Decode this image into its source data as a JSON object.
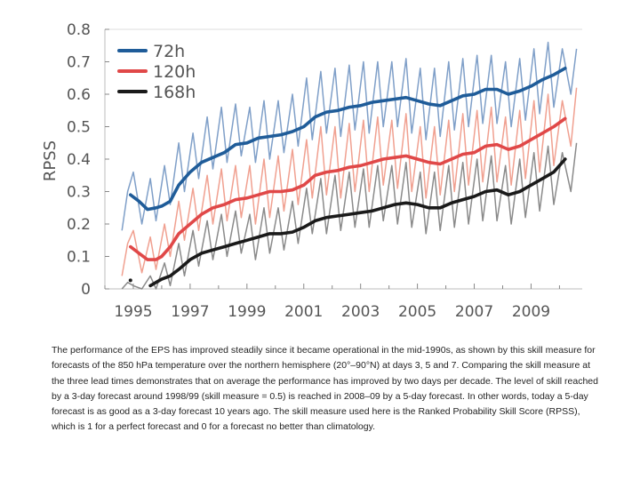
{
  "chart_data": {
    "type": "line",
    "ylabel": "RPSS",
    "xlabel": "",
    "ylim": [
      0,
      0.8
    ],
    "xlim": [
      1994,
      2010.8
    ],
    "yticks": [
      "0",
      "0.1",
      "0.2",
      "0.3",
      "0.4",
      "0.5",
      "0.6",
      "0.7",
      "0.8"
    ],
    "xticks": [
      "1995",
      "1997",
      "1999",
      "2001",
      "2003",
      "2005",
      "2007",
      "2009"
    ],
    "series": [
      {
        "name": "72h",
        "color": "#1f5c99",
        "raw_color": "#7f9fc8",
        "smooth_x": [
          1994.9,
          1995.2,
          1995.5,
          1995.8,
          1996.0,
          1996.3,
          1996.6,
          1997.0,
          1997.4,
          1997.8,
          1998.2,
          1998.6,
          1999.0,
          1999.4,
          1999.8,
          2000.2,
          2000.6,
          2001.0,
          2001.4,
          2001.8,
          2002.2,
          2002.6,
          2003.0,
          2003.4,
          2003.8,
          2004.2,
          2004.6,
          2005.0,
          2005.4,
          2005.8,
          2006.2,
          2006.6,
          2007.0,
          2007.4,
          2007.8,
          2008.2,
          2008.6,
          2009.0,
          2009.4,
          2009.8,
          2010.2
        ],
        "smooth_y": [
          0.29,
          0.27,
          0.245,
          0.25,
          0.255,
          0.27,
          0.32,
          0.36,
          0.39,
          0.405,
          0.42,
          0.445,
          0.45,
          0.465,
          0.47,
          0.475,
          0.485,
          0.5,
          0.53,
          0.545,
          0.55,
          0.56,
          0.565,
          0.575,
          0.58,
          0.585,
          0.59,
          0.58,
          0.57,
          0.565,
          0.58,
          0.595,
          0.6,
          0.615,
          0.615,
          0.6,
          0.61,
          0.625,
          0.645,
          0.66,
          0.68
        ],
        "raw_x": [
          1994.6,
          1994.8,
          1995.0,
          1995.3,
          1995.6,
          1995.8,
          1996.1,
          1996.3,
          1996.6,
          1996.8,
          1997.1,
          1997.3,
          1997.6,
          1997.8,
          1998.1,
          1998.3,
          1998.6,
          1998.8,
          1999.1,
          1999.3,
          1999.6,
          1999.8,
          2000.1,
          2000.3,
          2000.6,
          2000.8,
          2001.1,
          2001.3,
          2001.6,
          2001.8,
          2002.1,
          2002.3,
          2002.6,
          2002.8,
          2003.1,
          2003.3,
          2003.6,
          2003.8,
          2004.1,
          2004.3,
          2004.6,
          2004.8,
          2005.1,
          2005.3,
          2005.6,
          2005.8,
          2006.1,
          2006.3,
          2006.6,
          2006.8,
          2007.1,
          2007.3,
          2007.6,
          2007.8,
          2008.1,
          2008.3,
          2008.6,
          2008.8,
          2009.1,
          2009.3,
          2009.6,
          2009.8,
          2010.1,
          2010.4,
          2010.6
        ],
        "raw_y": [
          0.18,
          0.3,
          0.36,
          0.2,
          0.34,
          0.21,
          0.38,
          0.26,
          0.45,
          0.3,
          0.48,
          0.34,
          0.53,
          0.37,
          0.56,
          0.39,
          0.57,
          0.41,
          0.56,
          0.39,
          0.58,
          0.4,
          0.58,
          0.42,
          0.6,
          0.44,
          0.65,
          0.46,
          0.67,
          0.48,
          0.68,
          0.47,
          0.69,
          0.49,
          0.7,
          0.48,
          0.7,
          0.5,
          0.7,
          0.5,
          0.71,
          0.48,
          0.68,
          0.46,
          0.68,
          0.47,
          0.7,
          0.49,
          0.71,
          0.5,
          0.72,
          0.51,
          0.72,
          0.51,
          0.7,
          0.5,
          0.71,
          0.52,
          0.74,
          0.54,
          0.76,
          0.56,
          0.74,
          0.6,
          0.74
        ]
      },
      {
        "name": "120h",
        "color": "#e04848",
        "raw_color": "#f0a090",
        "smooth_x": [
          1994.9,
          1995.2,
          1995.5,
          1995.8,
          1996.0,
          1996.3,
          1996.6,
          1997.0,
          1997.4,
          1997.8,
          1998.2,
          1998.6,
          1999.0,
          1999.4,
          1999.8,
          2000.2,
          2000.6,
          2001.0,
          2001.4,
          2001.8,
          2002.2,
          2002.6,
          2003.0,
          2003.4,
          2003.8,
          2004.2,
          2004.6,
          2005.0,
          2005.4,
          2005.8,
          2006.2,
          2006.6,
          2007.0,
          2007.4,
          2007.8,
          2008.2,
          2008.6,
          2009.0,
          2009.4,
          2009.8,
          2010.2
        ],
        "smooth_y": [
          0.13,
          0.11,
          0.09,
          0.09,
          0.1,
          0.13,
          0.17,
          0.2,
          0.23,
          0.25,
          0.26,
          0.275,
          0.28,
          0.29,
          0.3,
          0.3,
          0.305,
          0.32,
          0.35,
          0.36,
          0.365,
          0.375,
          0.38,
          0.39,
          0.4,
          0.405,
          0.41,
          0.4,
          0.39,
          0.385,
          0.4,
          0.415,
          0.42,
          0.44,
          0.445,
          0.43,
          0.44,
          0.46,
          0.48,
          0.5,
          0.525
        ],
        "raw_x": [
          1994.6,
          1994.8,
          1995.0,
          1995.3,
          1995.6,
          1995.8,
          1996.1,
          1996.3,
          1996.6,
          1996.8,
          1997.1,
          1997.3,
          1997.6,
          1997.8,
          1998.1,
          1998.3,
          1998.6,
          1998.8,
          1999.1,
          1999.3,
          1999.6,
          1999.8,
          2000.1,
          2000.3,
          2000.6,
          2000.8,
          2001.1,
          2001.3,
          2001.6,
          2001.8,
          2002.1,
          2002.3,
          2002.6,
          2002.8,
          2003.1,
          2003.3,
          2003.6,
          2003.8,
          2004.1,
          2004.3,
          2004.6,
          2004.8,
          2005.1,
          2005.3,
          2005.6,
          2005.8,
          2006.1,
          2006.3,
          2006.6,
          2006.8,
          2007.1,
          2007.3,
          2007.6,
          2007.8,
          2008.1,
          2008.3,
          2008.6,
          2008.8,
          2009.1,
          2009.3,
          2009.6,
          2009.8,
          2010.1,
          2010.4,
          2010.6
        ],
        "raw_y": [
          0.04,
          0.14,
          0.18,
          0.05,
          0.16,
          0.06,
          0.2,
          0.1,
          0.27,
          0.15,
          0.31,
          0.18,
          0.35,
          0.2,
          0.37,
          0.21,
          0.38,
          0.22,
          0.38,
          0.2,
          0.4,
          0.22,
          0.41,
          0.24,
          0.43,
          0.26,
          0.46,
          0.28,
          0.5,
          0.29,
          0.5,
          0.28,
          0.51,
          0.3,
          0.52,
          0.3,
          0.53,
          0.32,
          0.52,
          0.31,
          0.54,
          0.3,
          0.5,
          0.28,
          0.5,
          0.29,
          0.52,
          0.3,
          0.54,
          0.32,
          0.55,
          0.33,
          0.56,
          0.33,
          0.53,
          0.32,
          0.55,
          0.34,
          0.58,
          0.36,
          0.6,
          0.38,
          0.58,
          0.44,
          0.62
        ]
      },
      {
        "name": "168h",
        "color": "#1a1a1a",
        "raw_color": "#8a8a8a",
        "smooth_x": [
          1995.6,
          1995.8,
          1996.0,
          1996.3,
          1996.6,
          1997.0,
          1997.4,
          1997.8,
          1998.2,
          1998.6,
          1999.0,
          1999.4,
          1999.8,
          2000.2,
          2000.6,
          2001.0,
          2001.4,
          2001.8,
          2002.2,
          2002.6,
          2003.0,
          2003.4,
          2003.8,
          2004.2,
          2004.6,
          2005.0,
          2005.4,
          2005.8,
          2006.2,
          2006.6,
          2007.0,
          2007.4,
          2007.8,
          2008.2,
          2008.6,
          2009.0,
          2009.4,
          2009.8,
          2010.2
        ],
        "smooth_y": [
          0.01,
          0.02,
          0.03,
          0.04,
          0.06,
          0.09,
          0.11,
          0.12,
          0.13,
          0.14,
          0.15,
          0.16,
          0.17,
          0.17,
          0.175,
          0.19,
          0.21,
          0.22,
          0.225,
          0.23,
          0.235,
          0.24,
          0.25,
          0.26,
          0.265,
          0.26,
          0.25,
          0.25,
          0.265,
          0.275,
          0.285,
          0.3,
          0.305,
          0.29,
          0.3,
          0.32,
          0.34,
          0.36,
          0.4
        ],
        "raw_x": [
          1994.6,
          1994.8,
          1995.0,
          1995.3,
          1995.6,
          1995.8,
          1996.1,
          1996.3,
          1996.6,
          1996.8,
          1997.1,
          1997.3,
          1997.6,
          1997.8,
          1998.1,
          1998.3,
          1998.6,
          1998.8,
          1999.1,
          1999.3,
          1999.6,
          1999.8,
          2000.1,
          2000.3,
          2000.6,
          2000.8,
          2001.1,
          2001.3,
          2001.6,
          2001.8,
          2002.1,
          2002.3,
          2002.6,
          2002.8,
          2003.1,
          2003.3,
          2003.6,
          2003.8,
          2004.1,
          2004.3,
          2004.6,
          2004.8,
          2005.1,
          2005.3,
          2005.6,
          2005.8,
          2006.1,
          2006.3,
          2006.6,
          2006.8,
          2007.1,
          2007.3,
          2007.6,
          2007.8,
          2008.1,
          2008.3,
          2008.6,
          2008.8,
          2009.1,
          2009.3,
          2009.6,
          2009.8,
          2010.1,
          2010.4,
          2010.6
        ],
        "raw_y": [
          0.0,
          0.02,
          0.01,
          0.0,
          0.04,
          0.0,
          0.08,
          0.01,
          0.14,
          0.04,
          0.18,
          0.07,
          0.21,
          0.09,
          0.23,
          0.1,
          0.24,
          0.11,
          0.23,
          0.09,
          0.25,
          0.11,
          0.25,
          0.12,
          0.27,
          0.14,
          0.31,
          0.17,
          0.34,
          0.17,
          0.35,
          0.18,
          0.36,
          0.19,
          0.37,
          0.19,
          0.38,
          0.21,
          0.38,
          0.2,
          0.39,
          0.19,
          0.36,
          0.17,
          0.36,
          0.18,
          0.38,
          0.19,
          0.39,
          0.2,
          0.4,
          0.21,
          0.41,
          0.21,
          0.38,
          0.2,
          0.4,
          0.22,
          0.42,
          0.24,
          0.44,
          0.26,
          0.42,
          0.3,
          0.45
        ]
      }
    ],
    "markers": [
      {
        "x": 1994.9,
        "y": 0.01,
        "series": "168h"
      }
    ]
  },
  "caption": "The performance of the EPS has improved steadily since it became operational in the mid-1990s, as shown by this skill measure for forecasts of the 850 hPa temperature over the northern hemisphere (20°–90°N) at days 3, 5 and 7. Comparing the skill measure at the three lead times demonstrates that on average the performance has improved by two days per decade. The level of skill reached by a 3-day forecast around 1998/99 (skill measure = 0.5) is reached in 2008–09 by a 5-day forecast. In other words, today a 5-day forecast is as good as a 3-day forecast 10 years ago. The skill measure used here is the Ranked Probability Skill Score (RPSS), which is 1 for a perfect forecast and 0 for a forecast no better than climatology."
}
